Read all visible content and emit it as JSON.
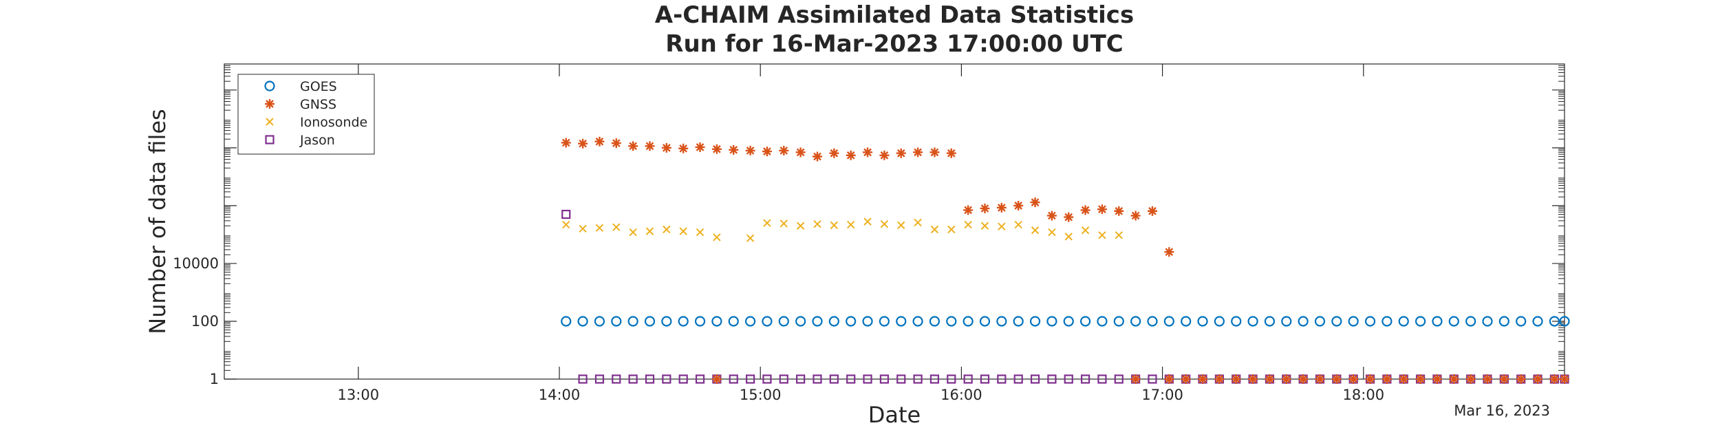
{
  "chart_data": {
    "type": "scatter",
    "title": "A-CHAIM Assimilated Data Statistics",
    "subtitle": "Run for 16-Mar-2023 17:00:00 UTC",
    "xlabel": "Date",
    "ylabel": "Number of data files",
    "x_axis_note": "Mar 16, 2023",
    "y_scale": "log",
    "xlim": [
      "12:20",
      "19:00"
    ],
    "x_ticks": [
      "13:00",
      "14:00",
      "15:00",
      "16:00",
      "17:00",
      "18:00"
    ],
    "y_ticks": [
      {
        "value": 1,
        "label": "1"
      },
      {
        "value": 100,
        "label": "100"
      },
      {
        "value": 10000,
        "label": "10000"
      },
      {
        "value": 1000000,
        "label": ""
      },
      {
        "value": 100000000,
        "label": ""
      },
      {
        "value": 10000000000,
        "label": ""
      }
    ],
    "grid": false,
    "legend_position": "top-left",
    "series": [
      {
        "name": "GOES",
        "marker": "circle",
        "color": "#0072BD",
        "points": [
          [
            "14:02",
            100
          ],
          [
            "14:07",
            100
          ],
          [
            "14:12",
            100
          ],
          [
            "14:17",
            100
          ],
          [
            "14:22",
            100
          ],
          [
            "14:27",
            100
          ],
          [
            "14:32",
            100
          ],
          [
            "14:37",
            100
          ],
          [
            "14:42",
            100
          ],
          [
            "14:47",
            100
          ],
          [
            "14:52",
            100
          ],
          [
            "14:57",
            100
          ],
          [
            "15:02",
            100
          ],
          [
            "15:07",
            100
          ],
          [
            "15:12",
            100
          ],
          [
            "15:17",
            100
          ],
          [
            "15:22",
            100
          ],
          [
            "15:27",
            100
          ],
          [
            "15:32",
            100
          ],
          [
            "15:37",
            100
          ],
          [
            "15:42",
            100
          ],
          [
            "15:47",
            100
          ],
          [
            "15:52",
            100
          ],
          [
            "15:57",
            100
          ],
          [
            "16:02",
            100
          ],
          [
            "16:07",
            100
          ],
          [
            "16:12",
            100
          ],
          [
            "16:17",
            100
          ],
          [
            "16:22",
            100
          ],
          [
            "16:27",
            100
          ],
          [
            "16:32",
            100
          ],
          [
            "16:37",
            100
          ],
          [
            "16:42",
            100
          ],
          [
            "16:47",
            100
          ],
          [
            "16:52",
            100
          ],
          [
            "16:57",
            100
          ],
          [
            "17:02",
            100
          ],
          [
            "17:07",
            100
          ],
          [
            "17:12",
            100
          ],
          [
            "17:17",
            100
          ],
          [
            "17:22",
            100
          ],
          [
            "17:27",
            100
          ],
          [
            "17:32",
            100
          ],
          [
            "17:37",
            100
          ],
          [
            "17:42",
            100
          ],
          [
            "17:47",
            100
          ],
          [
            "17:52",
            100
          ],
          [
            "17:57",
            100
          ],
          [
            "18:02",
            100
          ],
          [
            "18:07",
            100
          ],
          [
            "18:12",
            100
          ],
          [
            "18:17",
            100
          ],
          [
            "18:22",
            100
          ],
          [
            "18:27",
            100
          ],
          [
            "18:32",
            100
          ],
          [
            "18:37",
            100
          ],
          [
            "18:42",
            100
          ],
          [
            "18:47",
            100
          ],
          [
            "18:52",
            100
          ],
          [
            "18:57",
            100
          ],
          [
            "19:00",
            100
          ]
        ]
      },
      {
        "name": "GNSS",
        "marker": "asterisk",
        "color": "#D95319",
        "points": [
          [
            "14:02",
            150000000
          ],
          [
            "14:07",
            140000000
          ],
          [
            "14:12",
            165000000
          ],
          [
            "14:17",
            145000000
          ],
          [
            "14:22",
            115000000
          ],
          [
            "14:27",
            115000000
          ],
          [
            "14:32",
            100000000
          ],
          [
            "14:37",
            95000000
          ],
          [
            "14:42",
            105000000
          ],
          [
            "14:47",
            90000000
          ],
          [
            "14:52",
            85000000
          ],
          [
            "14:57",
            80000000
          ],
          [
            "15:02",
            75000000
          ],
          [
            "15:07",
            80000000
          ],
          [
            "15:12",
            70000000
          ],
          [
            "15:17",
            50000000
          ],
          [
            "15:22",
            65000000
          ],
          [
            "15:27",
            55000000
          ],
          [
            "15:32",
            70000000
          ],
          [
            "15:37",
            55000000
          ],
          [
            "15:42",
            65000000
          ],
          [
            "15:47",
            70000000
          ],
          [
            "15:52",
            70000000
          ],
          [
            "15:57",
            65000000
          ],
          [
            "16:02",
            700000
          ],
          [
            "16:07",
            800000
          ],
          [
            "16:12",
            850000
          ],
          [
            "16:17",
            1000000
          ],
          [
            "16:22",
            1300000
          ],
          [
            "16:27",
            450000
          ],
          [
            "16:32",
            400000
          ],
          [
            "16:37",
            700000
          ],
          [
            "16:42",
            750000
          ],
          [
            "16:47",
            650000
          ],
          [
            "16:52",
            450000
          ],
          [
            "16:57",
            650000
          ],
          [
            "17:02",
            25000
          ]
        ]
      },
      {
        "name": "Ionosonde",
        "marker": "cross",
        "color": "#EDB120",
        "points": [
          [
            "14:02",
            220000
          ],
          [
            "14:07",
            160000
          ],
          [
            "14:12",
            170000
          ],
          [
            "14:17",
            180000
          ],
          [
            "14:22",
            120000
          ],
          [
            "14:27",
            130000
          ],
          [
            "14:32",
            150000
          ],
          [
            "14:37",
            130000
          ],
          [
            "14:42",
            120000
          ],
          [
            "14:47",
            80000
          ],
          [
            "14:57",
            75000
          ],
          [
            "15:02",
            250000
          ],
          [
            "15:07",
            240000
          ],
          [
            "15:12",
            200000
          ],
          [
            "15:17",
            230000
          ],
          [
            "15:22",
            210000
          ],
          [
            "15:27",
            220000
          ],
          [
            "15:32",
            280000
          ],
          [
            "15:37",
            230000
          ],
          [
            "15:42",
            210000
          ],
          [
            "15:47",
            260000
          ],
          [
            "15:52",
            150000
          ],
          [
            "15:57",
            150000
          ],
          [
            "16:02",
            220000
          ],
          [
            "16:07",
            200000
          ],
          [
            "16:12",
            190000
          ],
          [
            "16:17",
            220000
          ],
          [
            "16:22",
            140000
          ],
          [
            "16:27",
            120000
          ],
          [
            "16:32",
            85000
          ],
          [
            "16:37",
            140000
          ],
          [
            "16:42",
            95000
          ],
          [
            "16:47",
            95000
          ]
        ]
      },
      {
        "name": "Jason",
        "marker": "square",
        "color": "#7E2F8E",
        "points": [
          [
            "14:02",
            500000
          ],
          [
            "14:07",
            1
          ],
          [
            "14:12",
            1
          ],
          [
            "14:17",
            1
          ],
          [
            "14:22",
            1
          ],
          [
            "14:27",
            1
          ],
          [
            "14:32",
            1
          ],
          [
            "14:37",
            1
          ],
          [
            "14:42",
            1
          ],
          [
            "14:47",
            1
          ],
          [
            "14:52",
            1
          ],
          [
            "14:57",
            1
          ],
          [
            "15:02",
            1
          ],
          [
            "15:07",
            1
          ],
          [
            "15:12",
            1
          ],
          [
            "15:17",
            1
          ],
          [
            "15:22",
            1
          ],
          [
            "15:27",
            1
          ],
          [
            "15:32",
            1
          ],
          [
            "15:37",
            1
          ],
          [
            "15:42",
            1
          ],
          [
            "15:47",
            1
          ],
          [
            "15:52",
            1
          ],
          [
            "15:57",
            1
          ],
          [
            "16:02",
            1
          ],
          [
            "16:07",
            1
          ],
          [
            "16:12",
            1
          ],
          [
            "16:17",
            1
          ],
          [
            "16:22",
            1
          ],
          [
            "16:27",
            1
          ],
          [
            "16:32",
            1
          ],
          [
            "16:37",
            1
          ],
          [
            "16:42",
            1
          ],
          [
            "16:47",
            1
          ],
          [
            "16:52",
            1
          ],
          [
            "16:57",
            1
          ],
          [
            "17:02",
            1
          ],
          [
            "17:07",
            1
          ],
          [
            "17:12",
            1
          ],
          [
            "17:17",
            1
          ],
          [
            "17:22",
            1
          ],
          [
            "17:27",
            1
          ],
          [
            "17:32",
            1
          ],
          [
            "17:37",
            1
          ],
          [
            "17:42",
            1
          ],
          [
            "17:47",
            1
          ],
          [
            "17:52",
            1
          ],
          [
            "17:57",
            1
          ],
          [
            "18:02",
            1
          ],
          [
            "18:07",
            1
          ],
          [
            "18:12",
            1
          ],
          [
            "18:17",
            1
          ],
          [
            "18:22",
            1
          ],
          [
            "18:27",
            1
          ],
          [
            "18:32",
            1
          ],
          [
            "18:37",
            1
          ],
          [
            "18:42",
            1
          ],
          [
            "18:47",
            1
          ],
          [
            "18:52",
            1
          ],
          [
            "18:57",
            1
          ],
          [
            "19:00",
            1
          ]
        ]
      },
      {
        "name": "",
        "marker": "asterisk",
        "color": "#D95319",
        "points": [
          [
            "14:47",
            1
          ],
          [
            "16:52",
            1
          ],
          [
            "17:02",
            1
          ],
          [
            "17:07",
            1
          ],
          [
            "17:12",
            1
          ],
          [
            "17:17",
            1
          ],
          [
            "17:22",
            1
          ],
          [
            "17:27",
            1
          ],
          [
            "17:32",
            1
          ],
          [
            "17:37",
            1
          ],
          [
            "17:42",
            1
          ],
          [
            "17:47",
            1
          ],
          [
            "17:52",
            1
          ],
          [
            "17:57",
            1
          ],
          [
            "18:02",
            1
          ],
          [
            "18:07",
            1
          ],
          [
            "18:12",
            1
          ],
          [
            "18:17",
            1
          ],
          [
            "18:22",
            1
          ],
          [
            "18:27",
            1
          ],
          [
            "18:32",
            1
          ],
          [
            "18:37",
            1
          ],
          [
            "18:42",
            1
          ],
          [
            "18:47",
            1
          ],
          [
            "18:52",
            1
          ],
          [
            "18:57",
            1
          ],
          [
            "19:00",
            1
          ]
        ]
      }
    ]
  }
}
